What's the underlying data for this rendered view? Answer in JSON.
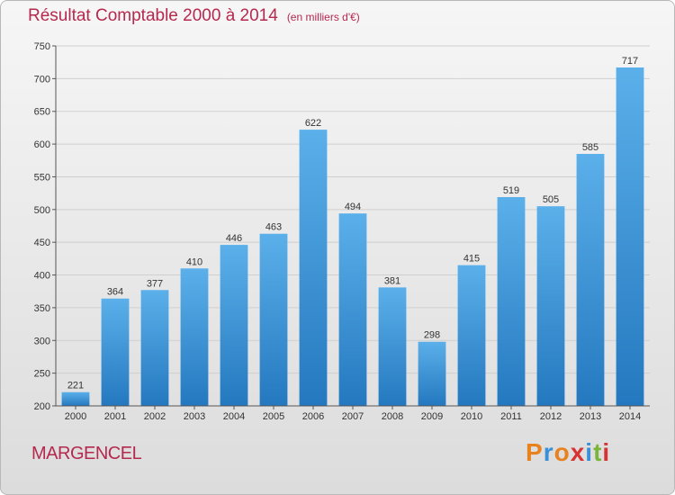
{
  "title": "Résultat Comptable 2000 à 2014",
  "subtitle": "(en milliers d'€)",
  "place": "MARGENCEL",
  "logo": "Proxiti",
  "logo_colors": [
    "#e8821e",
    "#3a8fd6",
    "#e8821e",
    "#d93232",
    "#3a8fd6",
    "#7ab539",
    "#d93232"
  ],
  "colors": {
    "bar_top": "#5bb0ea",
    "bar_bottom": "#2478bf",
    "accent": "#b5294f",
    "grid": "#cfcfcf"
  },
  "chart_data": {
    "type": "bar",
    "categories": [
      "2000",
      "2001",
      "2002",
      "2003",
      "2004",
      "2005",
      "2006",
      "2007",
      "2008",
      "2009",
      "2010",
      "2011",
      "2012",
      "2013",
      "2014"
    ],
    "values": [
      221,
      364,
      377,
      410,
      446,
      463,
      622,
      494,
      381,
      298,
      415,
      519,
      505,
      585,
      717
    ],
    "ylim": [
      200,
      750
    ],
    "yticks": [
      200,
      250,
      300,
      350,
      400,
      450,
      500,
      550,
      600,
      650,
      700,
      750
    ],
    "grid": true,
    "xlabel": "",
    "ylabel": ""
  }
}
